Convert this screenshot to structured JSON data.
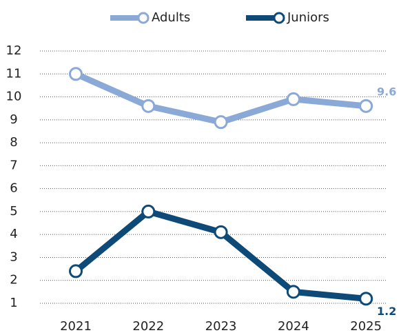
{
  "chart_data": {
    "type": "line",
    "categories": [
      "2021",
      "2022",
      "2023",
      "2024",
      "2025"
    ],
    "series": [
      {
        "name": "Adults",
        "color": "#8aa9d6",
        "values": [
          11,
          9.6,
          8.9,
          9.9,
          9.6
        ]
      },
      {
        "name": "Juniors",
        "color": "#0e4a78",
        "values": [
          2.4,
          5,
          4.1,
          1.5,
          1.2
        ]
      }
    ],
    "ylim": [
      1,
      12
    ],
    "yticks": [
      1,
      2,
      3,
      4,
      5,
      6,
      7,
      8,
      9,
      10,
      11,
      12
    ],
    "grid": true,
    "legend": "top",
    "label_last": true
  }
}
